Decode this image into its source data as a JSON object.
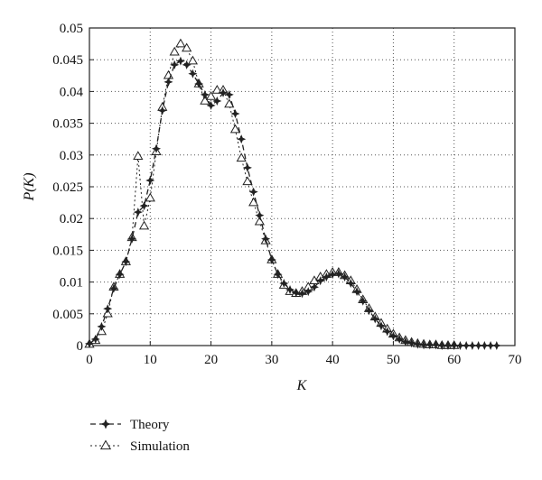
{
  "chart_data": {
    "type": "line",
    "xlabel": "K",
    "ylabel": "P(K)",
    "xlim": [
      0,
      70
    ],
    "ylim": [
      0,
      0.05
    ],
    "xticks": [
      "0",
      "10",
      "20",
      "30",
      "40",
      "50",
      "60",
      "70"
    ],
    "yticks": [
      "0",
      "0.005",
      "0.01",
      "0.015",
      "0.02",
      "0.025",
      "0.03",
      "0.035",
      "0.04",
      "0.045",
      "0.05"
    ],
    "grid": true,
    "legend_position": "below-left",
    "series": [
      {
        "name": "Theory",
        "marker": "star",
        "line": "dashed",
        "x": [
          0,
          1,
          2,
          3,
          4,
          5,
          6,
          7,
          8,
          9,
          10,
          11,
          12,
          13,
          14,
          15,
          16,
          17,
          18,
          19,
          20,
          21,
          22,
          23,
          24,
          25,
          26,
          27,
          28,
          29,
          30,
          31,
          32,
          33,
          34,
          35,
          36,
          37,
          38,
          39,
          40,
          41,
          42,
          43,
          44,
          45,
          46,
          47,
          48,
          49,
          50,
          51,
          52,
          53,
          54,
          55,
          56,
          57,
          58,
          59,
          60,
          61,
          62,
          63,
          64,
          65,
          66,
          67
        ],
        "y": [
          0.0003,
          0.001,
          0.003,
          0.0058,
          0.009,
          0.0112,
          0.0132,
          0.0168,
          0.021,
          0.022,
          0.026,
          0.031,
          0.037,
          0.0415,
          0.0442,
          0.0448,
          0.0442,
          0.0428,
          0.0412,
          0.0395,
          0.0378,
          0.0385,
          0.0398,
          0.0395,
          0.0365,
          0.0325,
          0.028,
          0.0242,
          0.0205,
          0.0168,
          0.0135,
          0.0112,
          0.0098,
          0.0088,
          0.0083,
          0.0082,
          0.0085,
          0.0092,
          0.0102,
          0.0108,
          0.0112,
          0.0113,
          0.0108,
          0.0098,
          0.0085,
          0.007,
          0.0055,
          0.0042,
          0.0031,
          0.0022,
          0.0015,
          0.001,
          0.0006,
          0.0004,
          0.0002,
          0.0001,
          0.0001,
          0.0001,
          0,
          0,
          0,
          0,
          0,
          0,
          0,
          0,
          0,
          0
        ]
      },
      {
        "name": "Simulation",
        "marker": "triangle",
        "line": "dotted",
        "x": [
          0,
          1,
          2,
          3,
          4,
          5,
          6,
          7,
          8,
          9,
          10,
          11,
          12,
          13,
          14,
          15,
          16,
          17,
          18,
          19,
          20,
          21,
          22,
          23,
          24,
          25,
          26,
          27,
          28,
          29,
          30,
          31,
          32,
          33,
          34,
          35,
          36,
          37,
          38,
          39,
          40,
          41,
          42,
          43,
          44,
          45,
          46,
          47,
          48,
          49,
          50,
          51,
          52,
          53,
          54,
          55,
          56,
          57,
          58,
          59,
          60
        ],
        "y": [
          0.0002,
          0.0008,
          0.0022,
          0.005,
          0.0092,
          0.0112,
          0.0132,
          0.017,
          0.0298,
          0.0188,
          0.0232,
          0.0305,
          0.0375,
          0.0425,
          0.0462,
          0.0475,
          0.0468,
          0.0448,
          0.0412,
          0.0385,
          0.0392,
          0.0402,
          0.0402,
          0.038,
          0.034,
          0.0295,
          0.0258,
          0.0225,
          0.0195,
          0.0165,
          0.0135,
          0.0112,
          0.0095,
          0.0085,
          0.0082,
          0.0085,
          0.0092,
          0.0102,
          0.0108,
          0.0112,
          0.0115,
          0.0115,
          0.011,
          0.0102,
          0.0088,
          0.0072,
          0.0058,
          0.0045,
          0.0035,
          0.0026,
          0.0018,
          0.0012,
          0.0008,
          0.0005,
          0.0003,
          0.0002,
          0.0001,
          0.0001,
          0,
          0,
          0
        ]
      }
    ]
  }
}
